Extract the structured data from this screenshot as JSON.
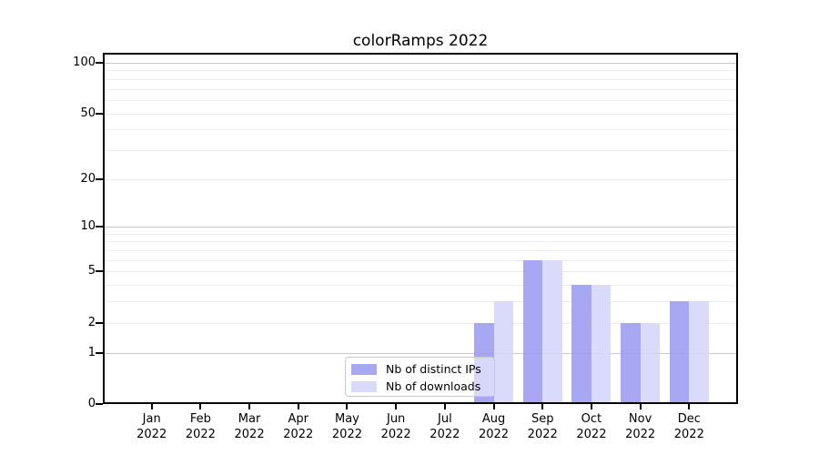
{
  "title": "colorRamps 2022",
  "colors": {
    "distinct_ips": "#a8a8f2",
    "downloads": "#d9d9f8",
    "major_grid": "#c8c8c8",
    "minor_grid": "#ebebeb",
    "axis": "#000000",
    "legend_border": "#c9c9c9"
  },
  "legend": {
    "items": [
      {
        "label": "Nb of distinct IPs",
        "color": "#a8a8f2",
        "fill": "rgba(155,155,241,0.88)"
      },
      {
        "label": "Nb of downloads",
        "color": "#d9d9f8",
        "fill": "rgba(213,213,250,0.88)"
      }
    ]
  },
  "chart_data": {
    "type": "bar",
    "title": "colorRamps 2022",
    "categories": [
      "Jan 2022",
      "Feb 2022",
      "Mar 2022",
      "Apr 2022",
      "May 2022",
      "Jun 2022",
      "Jul 2022",
      "Aug 2022",
      "Sep 2022",
      "Oct 2022",
      "Nov 2022",
      "Dec 2022"
    ],
    "series": [
      {
        "name": "Nb of distinct IPs",
        "color": "#a8a8f2",
        "fill": "rgba(155,155,241,0.88)",
        "values": [
          0,
          0,
          0,
          0,
          0,
          0,
          0,
          2,
          6,
          4,
          2,
          3
        ]
      },
      {
        "name": "Nb of downloads",
        "color": "#d9d9f8",
        "fill": "rgba(213,213,250,0.88)",
        "values": [
          0,
          0,
          0,
          0,
          0,
          0,
          0,
          3,
          6,
          4,
          2,
          3
        ]
      }
    ],
    "yscale": "log1p",
    "ylim": [
      0,
      113
    ],
    "yticks": [
      0,
      1,
      2,
      5,
      10,
      20,
      50,
      100
    ],
    "major_gridlines": [
      1,
      10,
      100
    ],
    "minor_gridlines": [
      2,
      3,
      4,
      5,
      6,
      7,
      8,
      9,
      20,
      30,
      40,
      50,
      60,
      70,
      80,
      90
    ],
    "grid": true,
    "legend_position": "inside-bottom-center"
  }
}
